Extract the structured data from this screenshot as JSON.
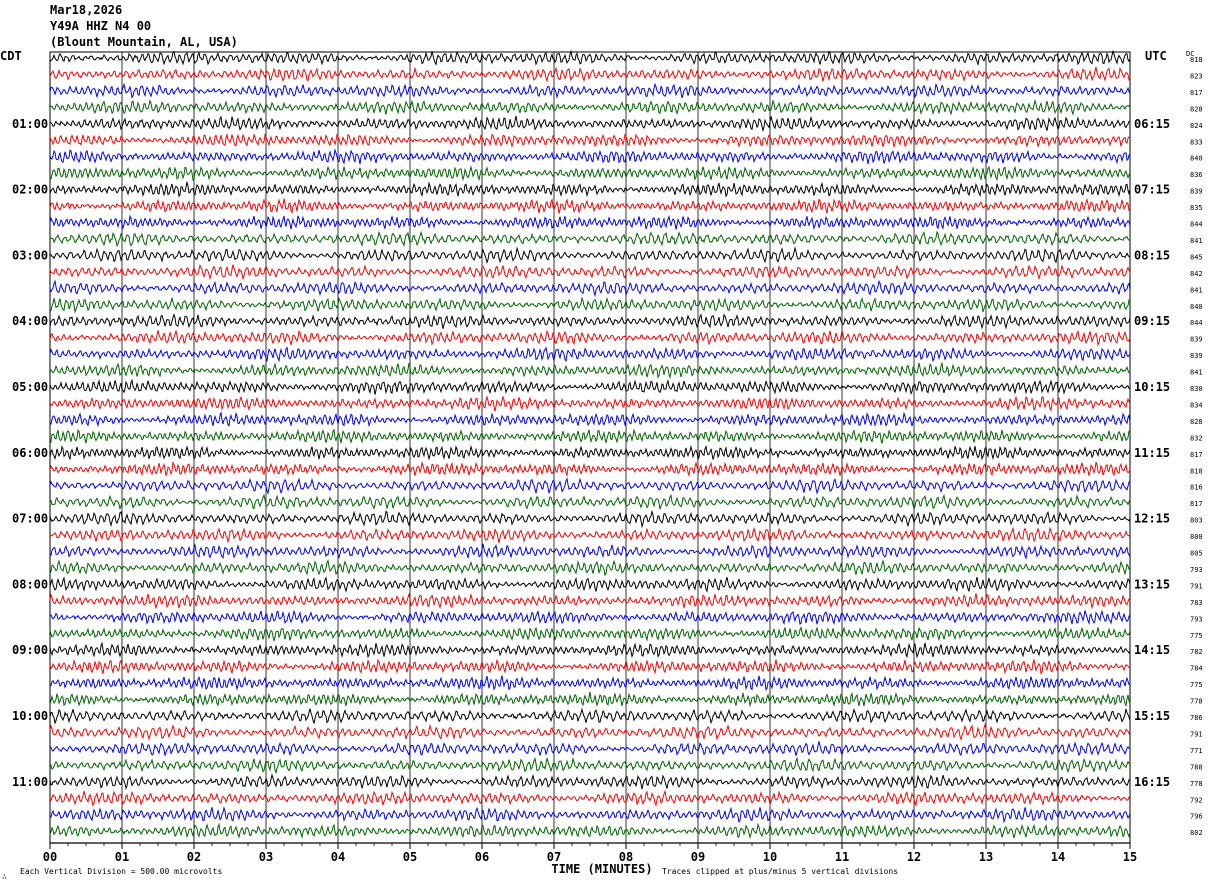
{
  "header": {
    "date": "Mar18,2026",
    "station": "Y49A HHZ N4 00",
    "location": "(Blount Mountain, AL, USA)"
  },
  "labels": {
    "left_tz": "CDT",
    "right_tz": "UTC",
    "dc": "DC",
    "xlabel": "TIME (MINUTES)",
    "scale_note": "Each Vertical Division =  500.00 microvolts",
    "clip_note": "Traces clipped at plus/minus 5 vertical divisions",
    "corner_mark": "∴"
  },
  "colors": {
    "trace_cycle": [
      "#000000",
      "#ff0000",
      "#0000ff",
      "#006400"
    ],
    "grid": "#000000"
  },
  "chart_data": {
    "type": "line",
    "title": "Y49A HHZ N4 00",
    "xlabel": "TIME (MINUTES)",
    "x_ticks": [
      "00",
      "01",
      "02",
      "03",
      "04",
      "05",
      "06",
      "07",
      "08",
      "09",
      "10",
      "11",
      "12",
      "13",
      "14",
      "15"
    ],
    "xlim": [
      0,
      15
    ],
    "traces_per_hour": 4,
    "trace_count": 48,
    "hour_labels_local": [
      "",
      "01:00",
      "02:00",
      "03:00",
      "04:00",
      "05:00",
      "06:00",
      "07:00",
      "08:00",
      "09:00",
      "10:00",
      "11:00"
    ],
    "hour_labels_utc": [
      "",
      "06:15",
      "07:15",
      "08:15",
      "09:15",
      "10:15",
      "11:15",
      "12:15",
      "13:15",
      "14:15",
      "15:15",
      "16:15"
    ],
    "dc_offsets": [
      818,
      823,
      817,
      828,
      824,
      833,
      840,
      836,
      839,
      835,
      844,
      841,
      845,
      842,
      841,
      840,
      844,
      839,
      839,
      841,
      830,
      834,
      828,
      832,
      817,
      818,
      816,
      817,
      803,
      800,
      805,
      793,
      791,
      783,
      793,
      775,
      782,
      784,
      775,
      778,
      786,
      791,
      771,
      788,
      778,
      792,
      796,
      802
    ],
    "clip_divisions": 5,
    "microvolts_per_division": 500.0
  }
}
